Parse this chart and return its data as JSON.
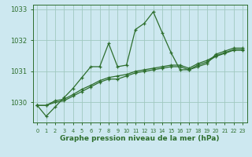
{
  "title": "Graphe pression niveau de la mer (hPa)",
  "background_color": "#cde8f0",
  "grid_color": "#a0c8c0",
  "line_color": "#2d6e2d",
  "hours": [
    0,
    1,
    2,
    3,
    4,
    5,
    6,
    7,
    8,
    9,
    10,
    11,
    12,
    13,
    14,
    15,
    16,
    17,
    18,
    19,
    20,
    21,
    22,
    23
  ],
  "series_main": [
    1029.9,
    1029.55,
    1029.85,
    1030.15,
    1030.45,
    1030.8,
    1031.15,
    1031.15,
    1031.9,
    1031.15,
    1031.2,
    1032.35,
    1032.55,
    1032.92,
    1032.25,
    1031.6,
    1031.05,
    1031.05,
    1031.15,
    1031.25,
    1031.55,
    1031.65,
    1031.75,
    1031.75
  ],
  "series_trend1": [
    1029.9,
    1029.9,
    1030.05,
    1030.1,
    1030.25,
    1030.42,
    1030.55,
    1030.7,
    1030.8,
    1030.85,
    1030.9,
    1031.0,
    1031.05,
    1031.1,
    1031.15,
    1031.2,
    1031.2,
    1031.1,
    1031.25,
    1031.35,
    1031.5,
    1031.6,
    1031.7,
    1031.7
  ],
  "series_trend2": [
    1029.9,
    1029.9,
    1030.0,
    1030.05,
    1030.2,
    1030.35,
    1030.5,
    1030.65,
    1030.75,
    1030.75,
    1030.85,
    1030.95,
    1031.0,
    1031.05,
    1031.1,
    1031.15,
    1031.15,
    1031.05,
    1031.2,
    1031.3,
    1031.48,
    1031.58,
    1031.68,
    1031.68
  ],
  "ylim": [
    1029.35,
    1033.15
  ],
  "yticks": [
    1030,
    1031,
    1032,
    1033
  ],
  "marker": "+"
}
